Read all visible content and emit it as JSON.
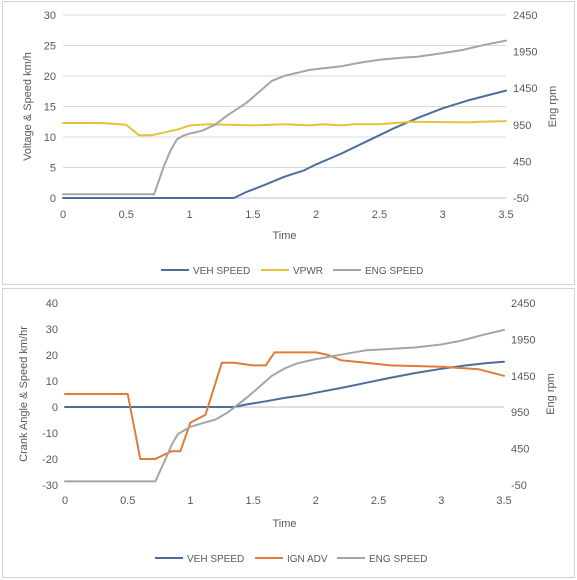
{
  "chart_data": [
    {
      "type": "line",
      "title": "",
      "xlabel": "Time",
      "ylabel": "Voltage & Speed km/h",
      "y2label": "Eng rpm",
      "xlim": [
        0,
        3.5
      ],
      "ylim": [
        0,
        30
      ],
      "y2lim": [
        -50,
        2450
      ],
      "x_ticks": [
        "0",
        "0.5",
        "1",
        "1.5",
        "2",
        "2.5",
        "3",
        "3.5"
      ],
      "y_ticks": [
        "0",
        "5",
        "10",
        "15",
        "20",
        "25",
        "30"
      ],
      "y2_ticks": [
        "-50",
        "450",
        "950",
        "1450",
        "1950",
        "2450"
      ],
      "grid": true,
      "legend": "bottom",
      "series": [
        {
          "name": "VEH SPEED",
          "color": "#4a6f9c",
          "axis": "left",
          "points": [
            [
              0,
              0
            ],
            [
              1.35,
              0
            ],
            [
              1.45,
              1.0
            ],
            [
              1.6,
              2.2
            ],
            [
              1.75,
              3.5
            ],
            [
              1.9,
              4.5
            ],
            [
              2.0,
              5.5
            ],
            [
              2.2,
              7.3
            ],
            [
              2.4,
              9.3
            ],
            [
              2.6,
              11.3
            ],
            [
              2.8,
              13.1
            ],
            [
              3.0,
              14.7
            ],
            [
              3.2,
              16.0
            ],
            [
              3.35,
              16.8
            ],
            [
              3.5,
              17.6
            ]
          ]
        },
        {
          "name": "VPWR",
          "color": "#e6c23a",
          "axis": "left",
          "points": [
            [
              0,
              12.3
            ],
            [
              0.3,
              12.3
            ],
            [
              0.5,
              12.0
            ],
            [
              0.6,
              10.3
            ],
            [
              0.7,
              10.3
            ],
            [
              0.9,
              11.2
            ],
            [
              1.0,
              11.9
            ],
            [
              1.15,
              12.1
            ],
            [
              1.5,
              11.9
            ],
            [
              1.75,
              12.1
            ],
            [
              1.95,
              11.9
            ],
            [
              2.05,
              12.1
            ],
            [
              2.2,
              11.9
            ],
            [
              2.3,
              12.1
            ],
            [
              2.5,
              12.1
            ],
            [
              2.75,
              12.5
            ],
            [
              3.2,
              12.4
            ],
            [
              3.3,
              12.5
            ],
            [
              3.5,
              12.6
            ]
          ]
        },
        {
          "name": "ENG SPEED",
          "color": "#a5a5a5",
          "axis": "right",
          "points": [
            [
              0,
              0
            ],
            [
              0.72,
              0
            ],
            [
              0.8,
              400
            ],
            [
              0.85,
              600
            ],
            [
              0.9,
              750
            ],
            [
              0.95,
              800
            ],
            [
              1.0,
              830
            ],
            [
              1.1,
              870
            ],
            [
              1.2,
              950
            ],
            [
              1.3,
              1080
            ],
            [
              1.45,
              1250
            ],
            [
              1.55,
              1400
            ],
            [
              1.65,
              1550
            ],
            [
              1.75,
              1620
            ],
            [
              1.85,
              1660
            ],
            [
              1.95,
              1700
            ],
            [
              2.05,
              1720
            ],
            [
              2.2,
              1750
            ],
            [
              2.35,
              1800
            ],
            [
              2.5,
              1840
            ],
            [
              2.7,
              1870
            ],
            [
              2.8,
              1880
            ],
            [
              3.0,
              1930
            ],
            [
              3.15,
              1970
            ],
            [
              3.35,
              2050
            ],
            [
              3.5,
              2100
            ]
          ]
        }
      ]
    },
    {
      "type": "line",
      "title": "",
      "xlabel": "Time",
      "ylabel": "Crank Angle & Speed km/hr",
      "y2label": "Eng rpm",
      "xlim": [
        0,
        3.5
      ],
      "ylim": [
        -30,
        40
      ],
      "y2lim": [
        -50,
        2450
      ],
      "x_ticks": [
        "0",
        "0.5",
        "1",
        "1.5",
        "2",
        "2.5",
        "3",
        "3.5"
      ],
      "y_ticks": [
        "-30",
        "-20",
        "-10",
        "0",
        "10",
        "20",
        "30",
        "40"
      ],
      "y2_ticks": [
        "-50",
        "450",
        "950",
        "1450",
        "1950",
        "2450"
      ],
      "grid": false,
      "legend": "bottom",
      "series": [
        {
          "name": "VEH SPEED",
          "color": "#4a6f9c",
          "axis": "left",
          "points": [
            [
              0,
              0
            ],
            [
              1.35,
              0
            ],
            [
              1.45,
              1.0
            ],
            [
              1.6,
              2.2
            ],
            [
              1.75,
              3.5
            ],
            [
              1.9,
              4.5
            ],
            [
              2.0,
              5.5
            ],
            [
              2.2,
              7.3
            ],
            [
              2.4,
              9.3
            ],
            [
              2.6,
              11.3
            ],
            [
              2.8,
              13.1
            ],
            [
              3.0,
              14.7
            ],
            [
              3.2,
              16.0
            ],
            [
              3.35,
              16.8
            ],
            [
              3.5,
              17.4
            ]
          ]
        },
        {
          "name": "IGN ADV",
          "color": "#e07b39",
          "axis": "left",
          "points": [
            [
              0,
              5
            ],
            [
              0.5,
              5
            ],
            [
              0.6,
              -20
            ],
            [
              0.72,
              -20
            ],
            [
              0.85,
              -17
            ],
            [
              0.92,
              -17
            ],
            [
              1.0,
              -6
            ],
            [
              1.12,
              -3
            ],
            [
              1.25,
              17
            ],
            [
              1.35,
              17
            ],
            [
              1.5,
              16
            ],
            [
              1.6,
              16
            ],
            [
              1.67,
              21
            ],
            [
              1.85,
              21
            ],
            [
              2.0,
              21
            ],
            [
              2.1,
              20
            ],
            [
              2.2,
              18
            ],
            [
              2.4,
              17
            ],
            [
              2.6,
              16
            ],
            [
              3.0,
              15.5
            ],
            [
              3.3,
              14.5
            ],
            [
              3.5,
              12
            ]
          ]
        },
        {
          "name": "ENG SPEED",
          "color": "#a5a5a5",
          "axis": "right",
          "points": [
            [
              0,
              0
            ],
            [
              0.72,
              0
            ],
            [
              0.8,
              300
            ],
            [
              0.85,
              500
            ],
            [
              0.9,
              650
            ],
            [
              0.95,
              700
            ],
            [
              1.0,
              750
            ],
            [
              1.1,
              800
            ],
            [
              1.2,
              850
            ],
            [
              1.3,
              950
            ],
            [
              1.45,
              1150
            ],
            [
              1.55,
              1300
            ],
            [
              1.65,
              1450
            ],
            [
              1.75,
              1550
            ],
            [
              1.85,
              1620
            ],
            [
              2.0,
              1680
            ],
            [
              2.2,
              1740
            ],
            [
              2.4,
              1800
            ],
            [
              2.6,
              1820
            ],
            [
              2.8,
              1840
            ],
            [
              3.0,
              1880
            ],
            [
              3.15,
              1930
            ],
            [
              3.35,
              2020
            ],
            [
              3.5,
              2080
            ]
          ]
        }
      ]
    }
  ]
}
